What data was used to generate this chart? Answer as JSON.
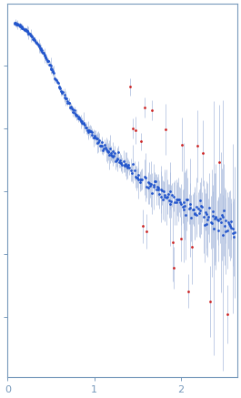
{
  "xlabel_ticks": [
    0,
    1,
    2
  ],
  "xlim": [
    0,
    2.65
  ],
  "dot_color_normal": "#2255cc",
  "dot_color_outlier": "#cc2222",
  "error_bar_color": "#aabbdd",
  "axis_color": "#7799bb",
  "tick_color": "#7799bb",
  "background_color": "#ffffff",
  "errorbar_linewidth": 0.5,
  "marker_size": 2.0
}
